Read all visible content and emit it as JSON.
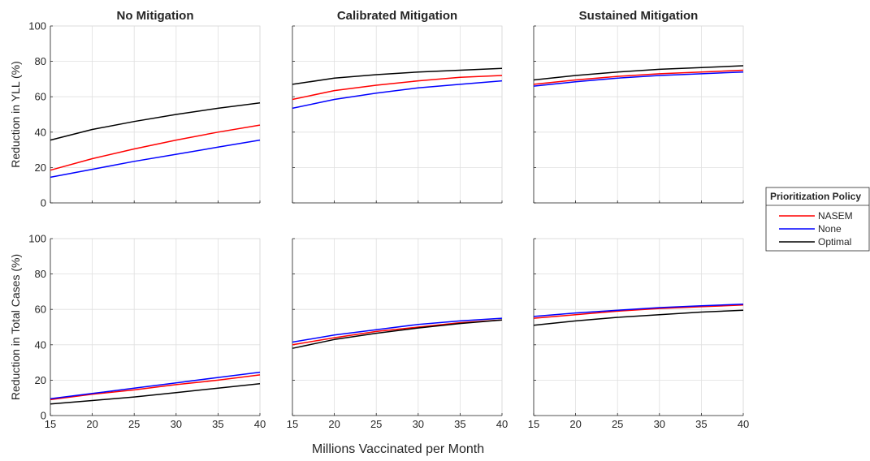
{
  "figure": {
    "xlabel": "Millions Vaccinated per Month",
    "legend": {
      "title": "Prioritization Policy",
      "placement": "right"
    }
  },
  "chart_data": [
    {
      "type": "line",
      "title": "No Mitigation",
      "ylabel": "Reduction in YLL (%)",
      "xlim": [
        15,
        40
      ],
      "ylim": [
        0,
        100
      ],
      "xticks": [
        15,
        20,
        25,
        30,
        35,
        40
      ],
      "yticks": [
        0,
        20,
        40,
        60,
        80,
        100
      ],
      "grid": true,
      "x": [
        15,
        20,
        25,
        30,
        35,
        40
      ],
      "series": [
        {
          "name": "NASEM",
          "color": "#ff0000",
          "values": [
            18.5,
            25,
            30.5,
            35.5,
            40,
            44
          ]
        },
        {
          "name": "None",
          "color": "#0000ff",
          "values": [
            14.5,
            19,
            23.5,
            27.5,
            31.5,
            35.5
          ]
        },
        {
          "name": "Optimal",
          "color": "#000000",
          "values": [
            35.5,
            41.5,
            46,
            50,
            53.5,
            56.5
          ]
        }
      ]
    },
    {
      "type": "line",
      "title": "Calibrated Mitigation",
      "ylabel": "",
      "xlim": [
        15,
        40
      ],
      "ylim": [
        0,
        100
      ],
      "xticks": [
        15,
        20,
        25,
        30,
        35,
        40
      ],
      "yticks": [
        0,
        20,
        40,
        60,
        80,
        100
      ],
      "grid": true,
      "x": [
        15,
        20,
        25,
        30,
        35,
        40
      ],
      "series": [
        {
          "name": "NASEM",
          "color": "#ff0000",
          "values": [
            58.5,
            63.5,
            66.5,
            69,
            71,
            72
          ]
        },
        {
          "name": "None",
          "color": "#0000ff",
          "values": [
            53.5,
            58.5,
            62,
            65,
            67,
            69
          ]
        },
        {
          "name": "Optimal",
          "color": "#000000",
          "values": [
            67,
            70.5,
            72.5,
            74,
            75,
            76
          ]
        }
      ]
    },
    {
      "type": "line",
      "title": "Sustained Mitigation",
      "ylabel": "",
      "xlim": [
        15,
        40
      ],
      "ylim": [
        0,
        100
      ],
      "xticks": [
        15,
        20,
        25,
        30,
        35,
        40
      ],
      "yticks": [
        0,
        20,
        40,
        60,
        80,
        100
      ],
      "grid": true,
      "x": [
        15,
        20,
        25,
        30,
        35,
        40
      ],
      "series": [
        {
          "name": "NASEM",
          "color": "#ff0000",
          "values": [
            67,
            69.5,
            71.5,
            73,
            74,
            75
          ]
        },
        {
          "name": "None",
          "color": "#0000ff",
          "values": [
            66,
            68.5,
            70.5,
            72,
            73,
            74
          ]
        },
        {
          "name": "Optimal",
          "color": "#000000",
          "values": [
            69.5,
            72,
            74,
            75.5,
            76.5,
            77.5
          ]
        }
      ]
    },
    {
      "type": "line",
      "title": "",
      "ylabel": "Reduction in Total Cases (%)",
      "xlim": [
        15,
        40
      ],
      "ylim": [
        0,
        100
      ],
      "xticks": [
        15,
        20,
        25,
        30,
        35,
        40
      ],
      "yticks": [
        0,
        20,
        40,
        60,
        80,
        100
      ],
      "grid": true,
      "x": [
        15,
        20,
        25,
        30,
        35,
        40
      ],
      "series": [
        {
          "name": "NASEM",
          "color": "#ff0000",
          "values": [
            9,
            12,
            14.5,
            17.5,
            20,
            23
          ]
        },
        {
          "name": "None",
          "color": "#0000ff",
          "values": [
            9.5,
            12.5,
            15.5,
            18.5,
            21.5,
            24.5
          ]
        },
        {
          "name": "Optimal",
          "color": "#000000",
          "values": [
            6.5,
            8.5,
            10.5,
            13,
            15.5,
            18
          ]
        }
      ]
    },
    {
      "type": "line",
      "title": "",
      "ylabel": "",
      "xlim": [
        15,
        40
      ],
      "ylim": [
        0,
        100
      ],
      "xticks": [
        15,
        20,
        25,
        30,
        35,
        40
      ],
      "yticks": [
        0,
        20,
        40,
        60,
        80,
        100
      ],
      "grid": true,
      "x": [
        15,
        20,
        25,
        30,
        35,
        40
      ],
      "series": [
        {
          "name": "NASEM",
          "color": "#ff0000",
          "values": [
            40,
            44,
            47.5,
            50,
            52.5,
            54
          ]
        },
        {
          "name": "None",
          "color": "#0000ff",
          "values": [
            41.5,
            45.5,
            48.5,
            51.5,
            53.5,
            55
          ]
        },
        {
          "name": "Optimal",
          "color": "#000000",
          "values": [
            38,
            43,
            46.5,
            49.5,
            52,
            54
          ]
        }
      ]
    },
    {
      "type": "line",
      "title": "",
      "ylabel": "",
      "xlim": [
        15,
        40
      ],
      "ylim": [
        0,
        100
      ],
      "xticks": [
        15,
        20,
        25,
        30,
        35,
        40
      ],
      "yticks": [
        0,
        20,
        40,
        60,
        80,
        100
      ],
      "grid": true,
      "x": [
        15,
        20,
        25,
        30,
        35,
        40
      ],
      "series": [
        {
          "name": "NASEM",
          "color": "#ff0000",
          "values": [
            55,
            57,
            59,
            60.5,
            61.5,
            62.5
          ]
        },
        {
          "name": "None",
          "color": "#0000ff",
          "values": [
            56,
            58,
            59.5,
            61,
            62,
            63
          ]
        },
        {
          "name": "Optimal",
          "color": "#000000",
          "values": [
            51,
            53.5,
            55.5,
            57,
            58.5,
            59.5
          ]
        }
      ]
    }
  ]
}
